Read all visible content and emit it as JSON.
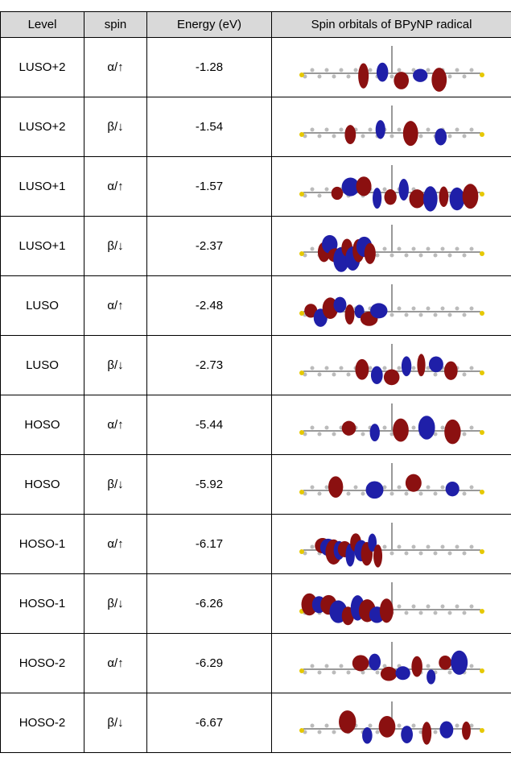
{
  "table": {
    "header": [
      "Level",
      "spin",
      "Energy (eV)",
      "Spin orbitals of BPyNP radical"
    ],
    "rows": [
      [
        "LUSO+2",
        "α/↑",
        -1.28
      ],
      [
        "LUSO+2",
        "β/↓",
        -1.54
      ],
      [
        "LUSO+1",
        "α/↑",
        -1.57
      ],
      [
        "LUSO+1",
        "β/↓",
        -2.37
      ],
      [
        "LUSO",
        "α/↑",
        -2.48
      ],
      [
        "LUSO",
        "β/↓",
        -2.73
      ],
      [
        "HOSO",
        "α/↑",
        -5.44
      ],
      [
        "HOSO",
        "β/↓",
        -5.92
      ],
      [
        "HOSO-1",
        "α/↑",
        -6.17
      ],
      [
        "HOSO-1",
        "β/↓",
        -6.26
      ],
      [
        "HOSO-2",
        "α/↑",
        -6.29
      ],
      [
        "HOSO-2",
        "β/↓",
        -6.67
      ]
    ]
  }
}
